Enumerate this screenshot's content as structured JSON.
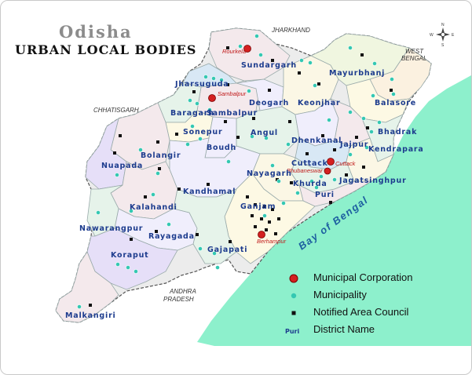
{
  "title": {
    "line1": "Odisha",
    "line2": "URBAN LOCAL BODIES"
  },
  "compass": {
    "n": "N",
    "s": "S",
    "e": "E",
    "w": "W"
  },
  "neighbors": {
    "jharkhand": "JHARKHAND",
    "west_bengal_1": "WEST",
    "west_bengal_2": "BENGAL",
    "chhatisgarh": "CHHATISGARH",
    "andhra_1": "ANDHRA",
    "andhra_2": "PRADESH"
  },
  "sea_label": "Bay of Bengal",
  "districts": {
    "sundargarh": "Sundargarh",
    "mayurbhanj": "Mayurbhanj",
    "jharsuguda": "Jharsuguda",
    "deogarh": "Deogarh",
    "keonjhar": "Keonjhar",
    "balasore": "Balasore",
    "baragarh": "Baragarh",
    "sambalpur": "Sambalpur",
    "bhadrak": "Bhadrak",
    "angul": "Angul",
    "dhenkanal": "Dhenkanal",
    "jajpur": "Jajpur",
    "kendrapara": "Kendrapara",
    "sonepur": "Sonepur",
    "boudh": "Boudh",
    "bolangir": "Bolangir",
    "nuapada": "Nuapada",
    "cuttack": "Cuttack",
    "jagatsinghpur": "Jagatsinghpur",
    "nayagarh": "Nayagarh",
    "khurda": "Khurda",
    "puri": "Puri",
    "kandhamal": "Kandhamal",
    "kalahandi": "Kalahandi",
    "ganjam": "Ganjam",
    "nawarangpur": "Nawarangpur",
    "rayagada": "Rayagada",
    "gajapati": "Gajapati",
    "koraput": "Koraput",
    "malkangiri": "Malkangiri"
  },
  "corporations": {
    "rourkela": "Rourkela",
    "sambalpur": "Sambalpur",
    "cuttack": "Cuttack",
    "bhubaneswar": "Bhubaneswar",
    "berhampur": "Berhampur"
  },
  "legend": {
    "corporation": "Municipal Corporation",
    "municipality": "Municipality",
    "nac": "Notified Area Council",
    "district_sample": "Puri",
    "district": "District Name"
  },
  "colors": {
    "sea": "#8df0cc",
    "corporation": "#d42020",
    "municipality": "#34c8b2",
    "nac": "#111111",
    "district_text": "#1d3c8e",
    "corporation_text": "#c01a1a"
  }
}
